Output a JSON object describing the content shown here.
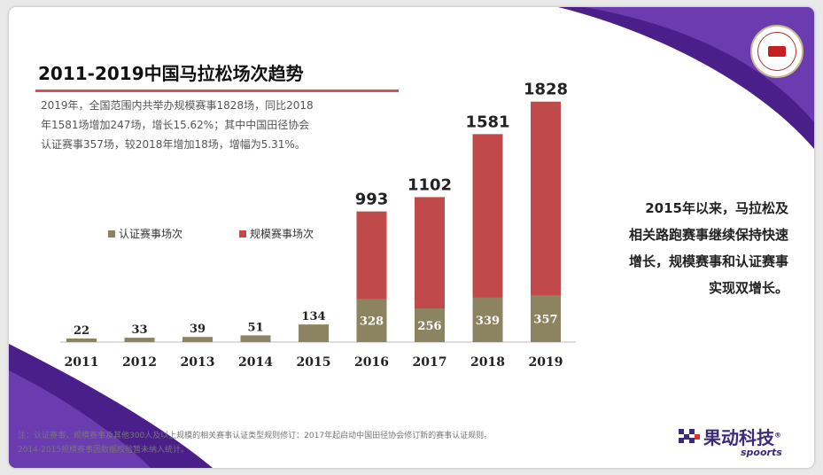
{
  "slide": {
    "title": "2011-2019中国马拉松场次趋势",
    "summary_lines": [
      "2019年，全国范围内共举办规模赛事1828场，同比2018",
      "年1581场增加247场，增长15.62%；其中中国田径协会",
      "认证赛事357场，较2018年增加18场，增幅为5.31%。"
    ],
    "side_lines": [
      "2015年以来，马拉松及",
      "相关路跑赛事继续保持快速",
      "增长，规模赛事和认证赛事",
      "实现双增长。"
    ],
    "footer_lines": [
      "注：认证赛事，规模赛事及其他300人及以上规模的相关赛事认证类型规则修订：2017年起启动中国田径协会修订新的赛事认证规则。",
      "2014-2015规模赛事因数据校验暂未纳入统计。"
    ],
    "brand": {
      "name_cn": "果动科技",
      "name_en": "spoorts",
      "trademark": "®"
    },
    "logo": {
      "name": "中国田径协会"
    }
  },
  "colors": {
    "certified": "#8c8460",
    "scale": "#c04a4a",
    "purple": "#4a1f8a",
    "title_rule": "#c9585a"
  },
  "chart_data": {
    "type": "bar",
    "categories": [
      "2011",
      "2012",
      "2013",
      "2014",
      "2015",
      "2016",
      "2017",
      "2018",
      "2019"
    ],
    "series": [
      {
        "name": "认证赛事场次",
        "values": [
          22,
          33,
          39,
          51,
          134,
          328,
          256,
          339,
          357
        ],
        "color": "#8c8460"
      },
      {
        "name": "规模赛事场次",
        "values": [
          null,
          null,
          null,
          null,
          null,
          993,
          1102,
          1581,
          1828
        ],
        "color": "#c04a4a"
      }
    ],
    "title": "2011-2019中国马拉松场次趋势",
    "xlabel": "",
    "ylabel": "",
    "ylim": [
      0,
      1900
    ],
    "legend": "left"
  }
}
